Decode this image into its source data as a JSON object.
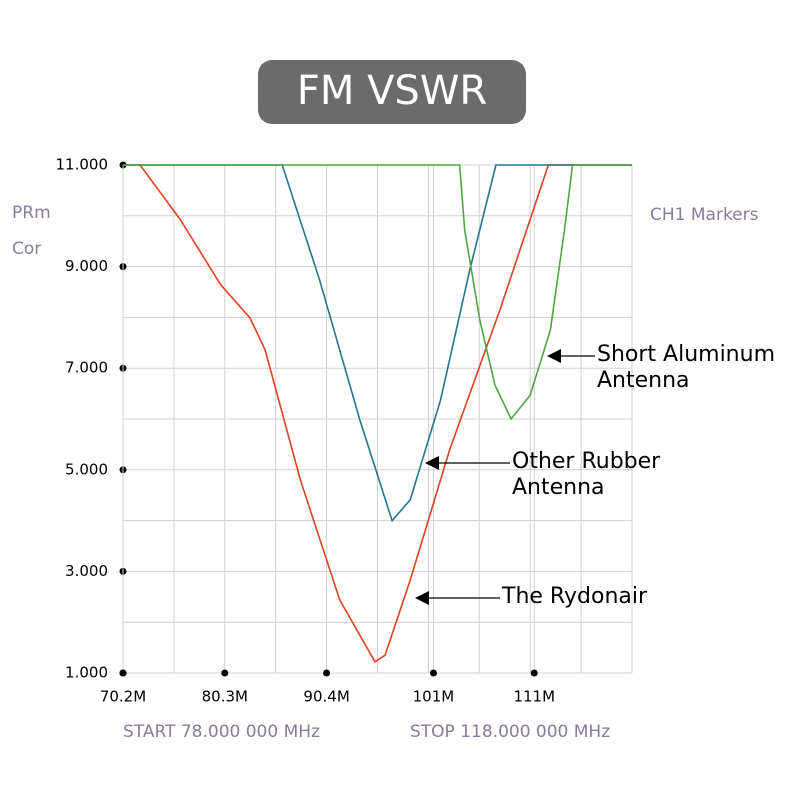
{
  "chart_data": {
    "type": "line",
    "title": "FM VSWR",
    "y_axis_labels": [
      "PRm",
      "Cor"
    ],
    "marker_label": "CH1 Markers",
    "start_label": "START 78.000 000 MHz",
    "stop_label": "STOP 118.000 000 MHz",
    "xlim": [
      70.2,
      120.7
    ],
    "xticks": [
      {
        "value": 70.2,
        "label": "70.2M"
      },
      {
        "value": 80.3,
        "label": "80.3M"
      },
      {
        "value": 90.4,
        "label": "90.4M"
      },
      {
        "value": 101,
        "label": "101M"
      },
      {
        "value": 111,
        "label": "111M"
      }
    ],
    "ylim": [
      1,
      11
    ],
    "yticks": [
      {
        "value": 1,
        "label": "1.000"
      },
      {
        "value": 3,
        "label": "3.000"
      },
      {
        "value": 5,
        "label": "5.000"
      },
      {
        "value": 7,
        "label": "7.000"
      },
      {
        "value": 9,
        "label": "9.000"
      },
      {
        "value": 11,
        "label": "11.000"
      }
    ],
    "grid": true,
    "series": [
      {
        "name": "The Rydonair",
        "color": "#e2401f",
        "x": [
          70.2,
          71.9,
          75.9,
          79.9,
          82.8,
          84.3,
          87.8,
          91.7,
          95.2,
          96.2,
          98.7,
          102.6,
          107.6,
          112.4,
          120.7
        ],
        "values": [
          11,
          11,
          9.92,
          8.64,
          7.99,
          7.36,
          4.8,
          2.44,
          1.22,
          1.35,
          2.83,
          5.39,
          8.15,
          11,
          11
        ]
      },
      {
        "name": "Other Rubber Antenna",
        "color": "#237590",
        "x": [
          70.2,
          86.0,
          89.7,
          93.7,
          96.9,
          98.7,
          101.7,
          104.6,
          107.2,
          120.7
        ],
        "values": [
          11,
          11,
          8.74,
          5.98,
          4.0,
          4.41,
          6.37,
          8.93,
          11,
          11
        ]
      },
      {
        "name": "Short Aluminum Antenna",
        "color": "#4ea83e",
        "x": [
          70.2,
          103.6,
          104.1,
          105.6,
          107.1,
          108.7,
          110.6,
          112.6,
          114.0,
          114.8,
          120.7
        ],
        "values": [
          11,
          11,
          9.72,
          7.95,
          6.67,
          6.0,
          6.47,
          7.75,
          9.72,
          11,
          11
        ]
      }
    ]
  }
}
